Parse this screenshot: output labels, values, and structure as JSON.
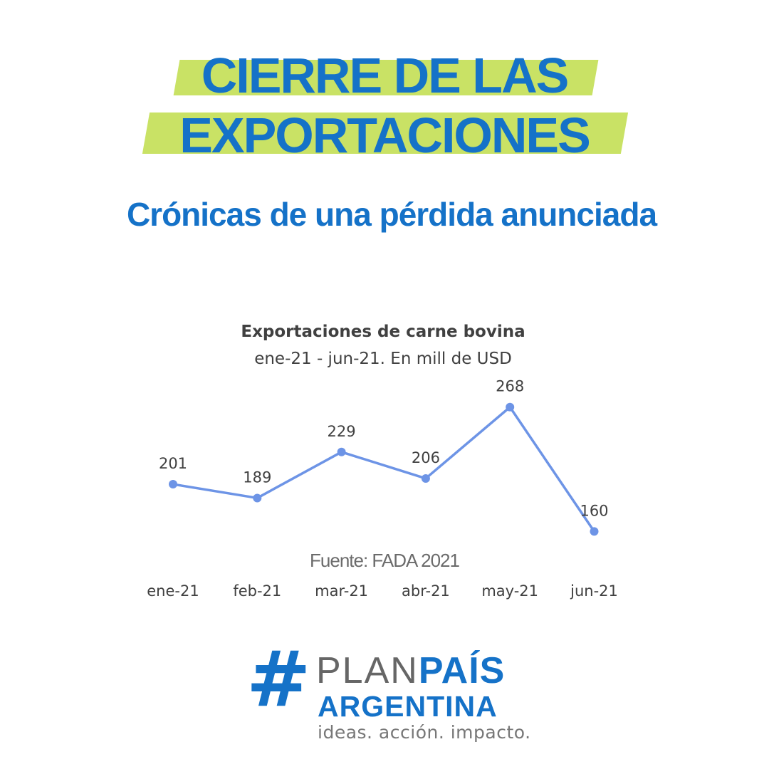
{
  "header": {
    "title_line1": "CIERRE DE LAS",
    "title_line2": "EXPORTACIONES",
    "subtitle": "Crónicas de una pérdida anunciada"
  },
  "colors": {
    "brand_blue": "#1572c8",
    "highlight": "#c9e265",
    "series": "#6d94e6",
    "text": "#404040"
  },
  "chart_data": {
    "type": "line",
    "title": "Exportaciones de carne bovina",
    "subtitle": "ene-21 - jun-21. En mill de USD",
    "categories": [
      "ene-21",
      "feb-21",
      "mar-21",
      "abr-21",
      "may-21",
      "jun-21"
    ],
    "series": [
      {
        "name": "Exportaciones de carne bovina",
        "values": [
          201,
          189,
          229,
          206,
          268,
          160
        ]
      }
    ],
    "xlabel": "",
    "ylabel": "",
    "ylim": [
      0,
      300
    ],
    "grid": false,
    "data_labels": true
  },
  "source": "Fuente: FADA 2021",
  "logo": {
    "hash": "#",
    "plan": "PLAN",
    "pais": "PAÍS",
    "argentina": "ARGENTINA",
    "tagline": "ideas. acción. impacto."
  }
}
